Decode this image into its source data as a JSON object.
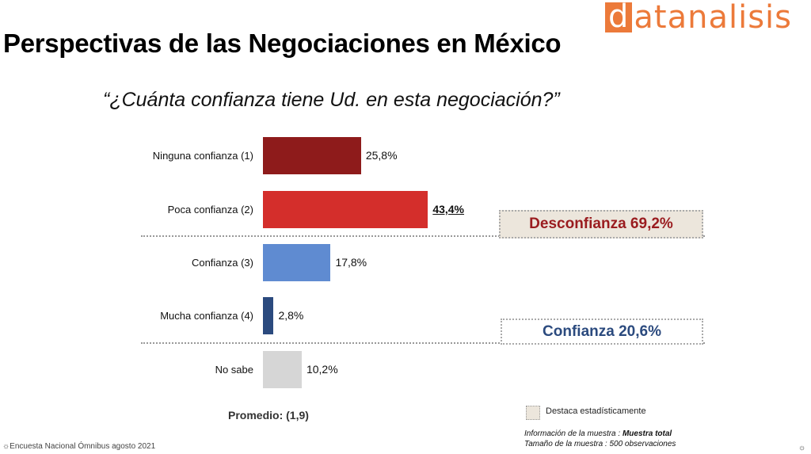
{
  "logo": {
    "first_letter": "d",
    "rest": "atanalisis",
    "color": "#ec7a3a"
  },
  "title": "Perspectivas de las Negociaciones en México",
  "question": "“¿Cuánta confianza tiene Ud. en esta negociación?”",
  "chart_data": {
    "type": "bar",
    "orientation": "horizontal",
    "categories": [
      "Ninguna confianza (1)",
      "Poca confianza (2)",
      "Confianza (3)",
      "Mucha confianza (4)",
      "No sabe"
    ],
    "values": [
      25.8,
      43.4,
      17.8,
      2.8,
      10.2
    ],
    "value_labels": [
      "25,8%",
      "43,4%",
      "17,8%",
      "2,8%",
      "10,2%"
    ],
    "colors": [
      "#8e1b1b",
      "#d42e2b",
      "#5f8bd1",
      "#2b4a7e",
      "#d6d6d6"
    ],
    "highlighted_index": 1,
    "groups": [
      {
        "label": "Desconfianza 69,2%",
        "color": "#9a1c1f",
        "highlighted": true
      },
      {
        "label": "Confianza 20,6%",
        "color": "#2b4a7e",
        "highlighted": false
      }
    ]
  },
  "average": "Promedio: (1,9)",
  "legend": {
    "label": "Destaca estadísticamente"
  },
  "sample_info": {
    "info_label": "Información de la muestra : ",
    "info_value": "Muestra total",
    "size_label": "Tamaño de la muestra : 500 observaciones"
  },
  "source": "☼Encuesta Nacional Ómnibus agosto 2021",
  "settings_icon": "☼"
}
